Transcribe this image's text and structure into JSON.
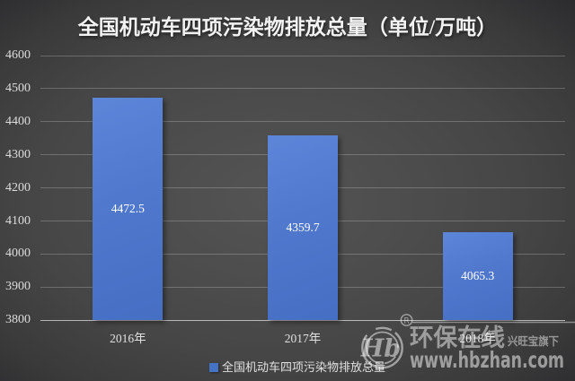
{
  "title": "全国机动车四项污染物排放总量（单位/万吨）",
  "chart_data": {
    "type": "bar",
    "title": "全国机动车四项污染物排放总量（单位/万吨）",
    "categories": [
      "2016年",
      "2017年",
      "2018年"
    ],
    "series": [
      {
        "name": "全国机动车四项污染物排放总量",
        "values": [
          4472.5,
          4359.7,
          4065.3
        ]
      }
    ],
    "value_labels": [
      "4472.5",
      "4359.7",
      "4065.3"
    ],
    "xlabel": "",
    "ylabel": "",
    "ylim": [
      3800,
      4600
    ],
    "yticks": [
      3800,
      3900,
      4000,
      4100,
      4200,
      4300,
      4400,
      4500,
      4600
    ],
    "grid": true,
    "legend_position": "bottom",
    "bar_color": "#4a74c9",
    "background_color": "#4a4a4a",
    "label_position": "center"
  },
  "legend": {
    "label": "全国机动车四项污染物排放总量",
    "swatch_color": "#4472c4"
  },
  "watermark": {
    "brand_cn": "环保在线",
    "sub_brand": "兴旺宝旗下",
    "url": "www.hbzhan.com",
    "logo_monogram": "Hb",
    "registered_mark": "®"
  },
  "colors": {
    "bar": "#4a74c9",
    "title_text": "#f2f2f2",
    "axis_text": "#dcdcdc",
    "value_text": "#ffffff",
    "watermark": "rgba(255,255,255,0.5)"
  }
}
